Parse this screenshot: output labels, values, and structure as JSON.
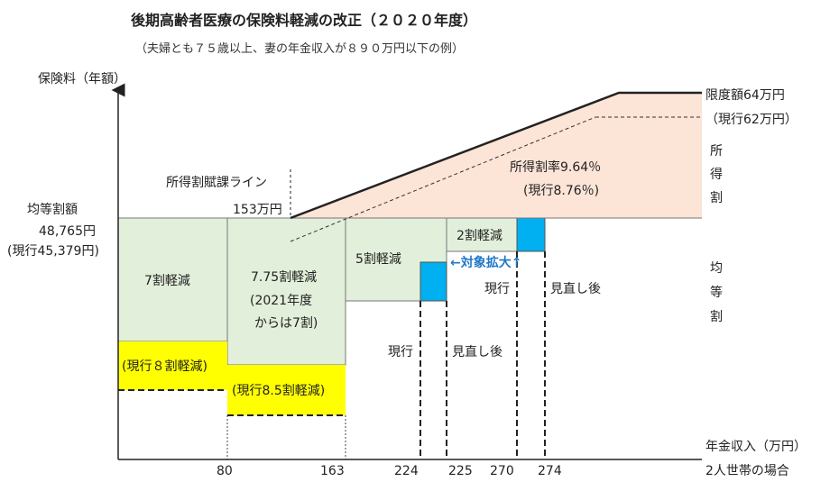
{
  "title": "後期高齢者医療の保険料軽減の改正（２０２０年度）",
  "subtitle": "（夫婦とも７５歳以上、妻の年金収入が８９０万円以下の例）",
  "y_axis_label": "保険料（年額）",
  "x_axis_label": "年金収入（万円）",
  "x_axis_sublabel": "2人世帯の場合",
  "x_ticks": [
    "80",
    "163",
    "224",
    "225",
    "270",
    "274"
  ],
  "equal_share": {
    "label": "均等割額",
    "value": "48,765円",
    "current": "(現行45,379円)"
  },
  "income_line": {
    "label": "所得割賦課ライン",
    "value": "153万円"
  },
  "cap": {
    "label": "限度額64万円",
    "current": "（現行62万円）"
  },
  "rate": {
    "label": "所得割率9.64％",
    "current": "(現行8.76％)"
  },
  "side_labels": {
    "income_share": [
      "所",
      "得",
      "割"
    ],
    "equal_share": [
      "均",
      "等",
      "割"
    ]
  },
  "bands": {
    "b70": "7割軽減",
    "b775": [
      "7.75割軽減",
      "(2021年度",
      "からは7割)"
    ],
    "b50": "5割軽減",
    "b20": "2割軽減",
    "cur80": "(現行８割軽減)",
    "cur85": "(現行8.5割軽減)"
  },
  "expansion": "←対象拡大↑",
  "markers": {
    "current": "現行",
    "revised": "見直し後"
  },
  "colors": {
    "green_fill": "#e2efda",
    "yellow_fill": "#ffff00",
    "blue_fill": "#00b0f0",
    "pink_fill": "#fce4d6",
    "accent_text": "#1f77c8"
  }
}
